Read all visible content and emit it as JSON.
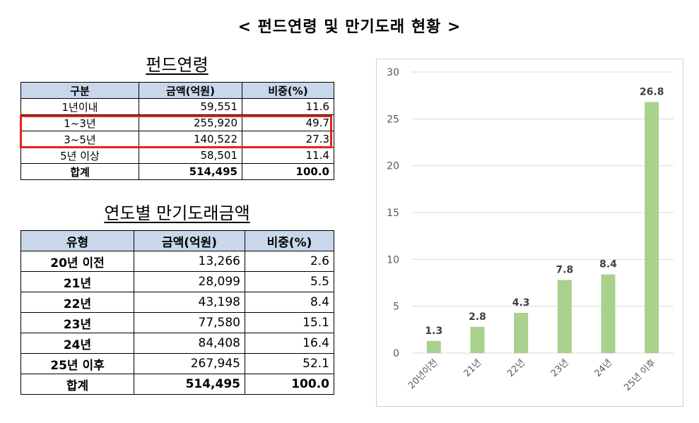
{
  "title": "< 펀드연령 및 만기도래 현황 >",
  "fund_age": {
    "title": "펀드연령",
    "headers": [
      "구분",
      "금액(억원)",
      "비중(%)"
    ],
    "rows": [
      [
        "1년이내",
        "59,551",
        "11.6"
      ],
      [
        "1~3년",
        "255,920",
        "49.7"
      ],
      [
        "3~5년",
        "140,522",
        "27.3"
      ],
      [
        "5년 이상",
        "58,501",
        "11.4"
      ],
      [
        "합계",
        "514,495",
        "100.0"
      ]
    ],
    "highlight_color": "#e52020"
  },
  "maturity": {
    "title": "연도별 만기도래금액",
    "headers": [
      "유형",
      "금액(억원)",
      "비중(%)"
    ],
    "rows": [
      [
        "20년 이전",
        "13,266",
        "2.6"
      ],
      [
        "21년",
        "28,099",
        "5.5"
      ],
      [
        "22년",
        "43,198",
        "8.4"
      ],
      [
        "23년",
        "77,580",
        "15.1"
      ],
      [
        "24년",
        "84,408",
        "16.4"
      ],
      [
        "25년 이후",
        "267,945",
        "52.1"
      ],
      [
        "합계",
        "514,495",
        "100.0"
      ]
    ]
  },
  "header_color": "#c8d7ea",
  "chart_data": {
    "type": "bar",
    "categories": [
      "20년이전",
      "21년",
      "22년",
      "23년",
      "24년",
      "25년 이후"
    ],
    "values": [
      1.3,
      2.8,
      4.3,
      7.8,
      8.4,
      26.8
    ],
    "ylim": [
      0,
      30
    ],
    "yticks": [
      0,
      5,
      10,
      15,
      20,
      25,
      30
    ],
    "grid": true,
    "bar_color": "#a9d18e",
    "grid_color": "#d9d9d9"
  }
}
